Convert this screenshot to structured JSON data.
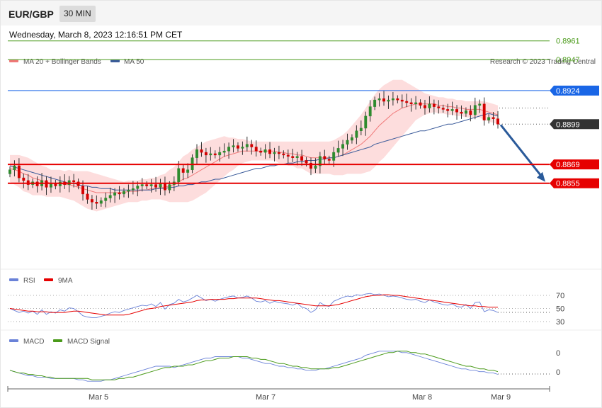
{
  "header": {
    "symbol": "EUR/GBP",
    "interval": "30 MIN"
  },
  "datetime": "Wednesday, March 8, 2023 12:16:51 PM CET",
  "copyright": "Research © 2023 Trading Central",
  "colors": {
    "bull": "#2e8b2e",
    "bear": "#d40000",
    "ma20": "#f07878",
    "ma50": "#3b5b9a",
    "band": "#fcd2d2",
    "green_level": "#4a9a1a",
    "blue_level": "#1a66e6",
    "red_level": "#e60000",
    "last_price": "#333333",
    "rsi": "#6a82d8",
    "rsi_ma": "#e60000",
    "macd": "#6a82d8",
    "macd_signal": "#4a9a1a",
    "arrow": "#2a5a9a"
  },
  "legend": {
    "ma20": "MA 20 + Bollinger Bands",
    "ma50": "MA 50",
    "rsi": "RSI",
    "rsi_ma": "9MA",
    "macd": "MACD",
    "macd_signal": "MACD Signal"
  },
  "chart_data": {
    "type": "candlestick",
    "ylim": [
      0.8829,
      0.8968
    ],
    "x_ticks": [
      "Mar 5",
      "Mar 7",
      "Mar 8",
      "Mar 9"
    ],
    "levels": [
      {
        "value": "0.8961",
        "kind": "resistance-green"
      },
      {
        "value": "0.8947",
        "kind": "resistance-green"
      },
      {
        "value": "0.8924",
        "kind": "pivot-blue"
      },
      {
        "value": "0.8899",
        "kind": "last-price"
      },
      {
        "value": "0.8869",
        "kind": "support-red"
      },
      {
        "value": "0.8855",
        "kind": "support-red"
      }
    ],
    "price": [
      0.8865,
      0.8868,
      0.8859,
      0.8857,
      0.8854,
      0.8856,
      0.8853,
      0.8857,
      0.8852,
      0.8855,
      0.8853,
      0.8856,
      0.8854,
      0.8857,
      0.8856,
      0.8853,
      0.8847,
      0.8843,
      0.8841,
      0.884,
      0.8842,
      0.8844,
      0.8846,
      0.8848,
      0.8847,
      0.8849,
      0.885,
      0.8851,
      0.8853,
      0.8854,
      0.8853,
      0.8854,
      0.8852,
      0.8855,
      0.885,
      0.8854,
      0.8856,
      0.8866,
      0.8863,
      0.8865,
      0.8874,
      0.888,
      0.8878,
      0.8876,
      0.8877,
      0.8876,
      0.8878,
      0.8879,
      0.8882,
      0.8883,
      0.8881,
      0.8882,
      0.8884,
      0.8882,
      0.8879,
      0.8878,
      0.888,
      0.8877,
      0.8878,
      0.8877,
      0.8876,
      0.8875,
      0.8874,
      0.8875,
      0.8872,
      0.887,
      0.8866,
      0.8868,
      0.8875,
      0.8873,
      0.8872,
      0.8878,
      0.8881,
      0.8884,
      0.8887,
      0.8889,
      0.8894,
      0.8896,
      0.8905,
      0.8912,
      0.8917,
      0.8918,
      0.8916,
      0.8917,
      0.8918,
      0.8917,
      0.8916,
      0.8915,
      0.8914,
      0.8915,
      0.8913,
      0.8911,
      0.8914,
      0.8912,
      0.8911,
      0.891,
      0.8909,
      0.891,
      0.8908,
      0.8907,
      0.8909,
      0.8906,
      0.8913,
      0.8914,
      0.8902,
      0.8904,
      0.8903,
      0.8899
    ],
    "ma20": [
      0.8866,
      0.8865,
      0.8864,
      0.8862,
      0.8861,
      0.8859,
      0.8858,
      0.8857,
      0.8856,
      0.8855,
      0.8855,
      0.8855,
      0.8854,
      0.8854,
      0.8853,
      0.8852,
      0.8851,
      0.885,
      0.8849,
      0.8848,
      0.8848,
      0.8848,
      0.8848,
      0.8848,
      0.8848,
      0.8848,
      0.8849,
      0.8849,
      0.8849,
      0.885,
      0.885,
      0.8851,
      0.8851,
      0.8852,
      0.8852,
      0.8853,
      0.8854,
      0.8856,
      0.8858,
      0.8859,
      0.8861,
      0.8863,
      0.8865,
      0.8867,
      0.8869,
      0.8871,
      0.8873,
      0.8875,
      0.8876,
      0.8877,
      0.8878,
      0.8879,
      0.8879,
      0.8879,
      0.8879,
      0.8879,
      0.8879,
      0.8879,
      0.8879,
      0.8878,
      0.8878,
      0.8877,
      0.8877,
      0.8876,
      0.8876,
      0.8875,
      0.8874,
      0.8874,
      0.8874,
      0.8874,
      0.8874,
      0.8874,
      0.8875,
      0.8876,
      0.8878,
      0.888,
      0.8882,
      0.8884,
      0.8887,
      0.889,
      0.8894,
      0.8898,
      0.8901,
      0.8904,
      0.8907,
      0.8909,
      0.8911,
      0.8912,
      0.8913,
      0.8914,
      0.8914,
      0.8914,
      0.8914,
      0.8914,
      0.8913,
      0.8913,
      0.8912,
      0.8912,
      0.8911,
      0.8911,
      0.891,
      0.891,
      0.891,
      0.891,
      0.8909,
      0.8908,
      0.8907,
      0.8906
    ],
    "bb_width": [
      0.001,
      0.0011,
      0.0012,
      0.0013,
      0.0013,
      0.0013,
      0.0012,
      0.0011,
      0.0011,
      0.001,
      0.001,
      0.001,
      0.001,
      0.0011,
      0.0011,
      0.0012,
      0.0013,
      0.0014,
      0.0014,
      0.0014,
      0.0013,
      0.0012,
      0.0011,
      0.001,
      0.0009,
      0.0008,
      0.0008,
      0.0008,
      0.0008,
      0.0008,
      0.0008,
      0.0008,
      0.0008,
      0.0009,
      0.001,
      0.0012,
      0.0013,
      0.0015,
      0.0017,
      0.0018,
      0.0019,
      0.0019,
      0.0019,
      0.0019,
      0.0018,
      0.0017,
      0.0016,
      0.0015,
      0.0013,
      0.0012,
      0.001,
      0.0009,
      0.0008,
      0.0007,
      0.0007,
      0.0007,
      0.0007,
      0.0007,
      0.0007,
      0.0008,
      0.0008,
      0.0009,
      0.0009,
      0.001,
      0.001,
      0.0011,
      0.0012,
      0.0012,
      0.0012,
      0.0012,
      0.0012,
      0.0013,
      0.0014,
      0.0015,
      0.0016,
      0.0018,
      0.002,
      0.0022,
      0.0024,
      0.0026,
      0.0027,
      0.0027,
      0.0027,
      0.0026,
      0.0025,
      0.0023,
      0.0021,
      0.0018,
      0.0015,
      0.0012,
      0.001,
      0.0008,
      0.0007,
      0.0006,
      0.0006,
      0.0006,
      0.0006,
      0.0006,
      0.0006,
      0.0006,
      0.0006,
      0.0006,
      0.0006,
      0.0006,
      0.0007,
      0.0007,
      0.0007,
      0.0007
    ],
    "ma50": [
      0.8868,
      0.8867,
      0.8866,
      0.8865,
      0.8864,
      0.8863,
      0.8862,
      0.8861,
      0.886,
      0.8859,
      0.8858,
      0.8857,
      0.8856,
      0.8855,
      0.8855,
      0.8854,
      0.8853,
      0.8853,
      0.8852,
      0.8852,
      0.8851,
      0.8851,
      0.8851,
      0.885,
      0.885,
      0.885,
      0.885,
      0.885,
      0.885,
      0.885,
      0.885,
      0.885,
      0.8851,
      0.8851,
      0.8851,
      0.8852,
      0.8852,
      0.8853,
      0.8853,
      0.8854,
      0.8854,
      0.8855,
      0.8856,
      0.8856,
      0.8857,
      0.8858,
      0.8858,
      0.8859,
      0.886,
      0.8861,
      0.8862,
      0.8863,
      0.8864,
      0.8865,
      0.8866,
      0.8866,
      0.8867,
      0.8868,
      0.8868,
      0.8869,
      0.8869,
      0.887,
      0.887,
      0.8871,
      0.8871,
      0.8872,
      0.8872,
      0.8872,
      0.8873,
      0.8873,
      0.8874,
      0.8874,
      0.8875,
      0.8876,
      0.8877,
      0.8878,
      0.8879,
      0.888,
      0.8881,
      0.8882,
      0.8884,
      0.8885,
      0.8886,
      0.8887,
      0.8888,
      0.8889,
      0.889,
      0.8891,
      0.8892,
      0.8893,
      0.8894,
      0.8894,
      0.8895,
      0.8896,
      0.8897,
      0.8898,
      0.8899,
      0.8899,
      0.89,
      0.8901,
      0.8902,
      0.8903,
      0.8904,
      0.8905,
      0.8906,
      0.8907,
      0.8906,
      0.8905
    ],
    "rsi_ticks": [
      "70",
      "50",
      "30"
    ],
    "rsi_range": [
      30,
      70
    ],
    "rsi": [
      50,
      47,
      44,
      46,
      43,
      46,
      41,
      48,
      41,
      45,
      43,
      48,
      46,
      51,
      50,
      45,
      39,
      37,
      36,
      36,
      38,
      40,
      43,
      45,
      44,
      47,
      49,
      51,
      53,
      55,
      54,
      57,
      53,
      59,
      49,
      56,
      58,
      64,
      60,
      62,
      66,
      70,
      66,
      62,
      64,
      61,
      64,
      66,
      68,
      69,
      66,
      67,
      69,
      66,
      61,
      60,
      62,
      58,
      61,
      59,
      58,
      57,
      55,
      58,
      52,
      50,
      44,
      48,
      59,
      55,
      53,
      61,
      64,
      67,
      69,
      68,
      71,
      70,
      72,
      73,
      71,
      72,
      70,
      68,
      69,
      68,
      66,
      64,
      63,
      64,
      61,
      59,
      63,
      60,
      58,
      56,
      55,
      57,
      53,
      52,
      56,
      50,
      59,
      60,
      45,
      48,
      47,
      44
    ],
    "rsi_ma": [
      50,
      49,
      48,
      47,
      46,
      46,
      45,
      45,
      45,
      44,
      44,
      44,
      44,
      45,
      46,
      46,
      45,
      44,
      43,
      42,
      41,
      40,
      40,
      40,
      40,
      40,
      41,
      43,
      45,
      47,
      49,
      50,
      51,
      53,
      54,
      55,
      56,
      57,
      58,
      59,
      60,
      62,
      63,
      63,
      64,
      64,
      64,
      64,
      65,
      65,
      66,
      66,
      66,
      66,
      66,
      65,
      64,
      63,
      62,
      62,
      61,
      60,
      59,
      58,
      57,
      56,
      55,
      54,
      54,
      54,
      54,
      55,
      56,
      58,
      60,
      62,
      64,
      66,
      68,
      69,
      70,
      70,
      71,
      71,
      70,
      70,
      69,
      68,
      67,
      66,
      65,
      64,
      63,
      62,
      61,
      60,
      59,
      58,
      57,
      56,
      55,
      54,
      54,
      53,
      53,
      52,
      52,
      52
    ],
    "macd_ticks": [
      "0",
      "0"
    ],
    "macd_range": [
      -0.0012,
      0.0014
    ],
    "macd": [
      -0.0002,
      -0.0003,
      -0.0004,
      -0.0005,
      -0.0006,
      -0.0006,
      -0.0007,
      -0.0007,
      -0.0007,
      -0.0008,
      -0.0008,
      -0.0008,
      -0.0008,
      -0.0008,
      -0.0008,
      -0.0009,
      -0.0009,
      -0.001,
      -0.001,
      -0.001,
      -0.001,
      -0.0009,
      -0.0009,
      -0.0008,
      -0.0007,
      -0.0006,
      -0.0005,
      -0.0004,
      -0.0003,
      -0.0002,
      -0.0001,
      0.0,
      0.0001,
      0.0001,
      0.0001,
      0.0001,
      0.0,
      0.0001,
      0.0002,
      0.0003,
      0.0004,
      0.0005,
      0.0006,
      0.0007,
      0.0007,
      0.0008,
      0.0008,
      0.0008,
      0.0008,
      0.0008,
      0.0008,
      0.0007,
      0.0007,
      0.0006,
      0.0005,
      0.0004,
      0.0003,
      0.0003,
      0.0002,
      0.0001,
      0.0001,
      0.0,
      0.0,
      -0.0001,
      -0.0001,
      -0.0002,
      -0.0002,
      -0.0002,
      -0.0001,
      -0.0001,
      0.0,
      0.0001,
      0.0002,
      0.0003,
      0.0004,
      0.0005,
      0.0006,
      0.0007,
      0.0009,
      0.001,
      0.0011,
      0.0012,
      0.0012,
      0.0012,
      0.0012,
      0.0012,
      0.0011,
      0.0011,
      0.001,
      0.0009,
      0.0008,
      0.0007,
      0.0006,
      0.0005,
      0.0004,
      0.0003,
      0.0002,
      0.0001,
      0.0,
      -0.0001,
      -0.0001,
      -0.0002,
      -0.0002,
      -0.0003,
      -0.0003,
      -0.0004,
      -0.0004,
      -0.0005
    ],
    "macd_signal": [
      -0.0002,
      -0.0003,
      -0.0004,
      -0.0004,
      -0.0005,
      -0.0005,
      -0.0006,
      -0.0006,
      -0.0007,
      -0.0007,
      -0.0008,
      -0.0008,
      -0.0008,
      -0.0008,
      -0.0008,
      -0.0008,
      -0.0008,
      -0.0008,
      -0.0009,
      -0.0009,
      -0.0009,
      -0.0009,
      -0.0009,
      -0.0009,
      -0.0008,
      -0.0008,
      -0.0007,
      -0.0007,
      -0.0006,
      -0.0005,
      -0.0004,
      -0.0003,
      -0.0002,
      -0.0001,
      0.0,
      0.0,
      0.0001,
      0.0001,
      0.0001,
      0.0002,
      0.0002,
      0.0003,
      0.0004,
      0.0005,
      0.0005,
      0.0006,
      0.0007,
      0.0007,
      0.0007,
      0.0008,
      0.0008,
      0.0008,
      0.0008,
      0.0007,
      0.0007,
      0.0006,
      0.0006,
      0.0005,
      0.0004,
      0.0003,
      0.0003,
      0.0002,
      0.0001,
      0.0001,
      0.0,
      0.0,
      -0.0001,
      -0.0001,
      -0.0001,
      -0.0001,
      -0.0001,
      0.0,
      0.0,
      0.0001,
      0.0002,
      0.0003,
      0.0004,
      0.0005,
      0.0006,
      0.0007,
      0.0008,
      0.0009,
      0.001,
      0.0011,
      0.0011,
      0.0012,
      0.0012,
      0.0012,
      0.0011,
      0.0011,
      0.001,
      0.001,
      0.0009,
      0.0008,
      0.0007,
      0.0006,
      0.0005,
      0.0004,
      0.0003,
      0.0002,
      0.0001,
      0.0001,
      0.0,
      -0.0001,
      -0.0001,
      -0.0002,
      -0.0002,
      -0.0003
    ]
  }
}
